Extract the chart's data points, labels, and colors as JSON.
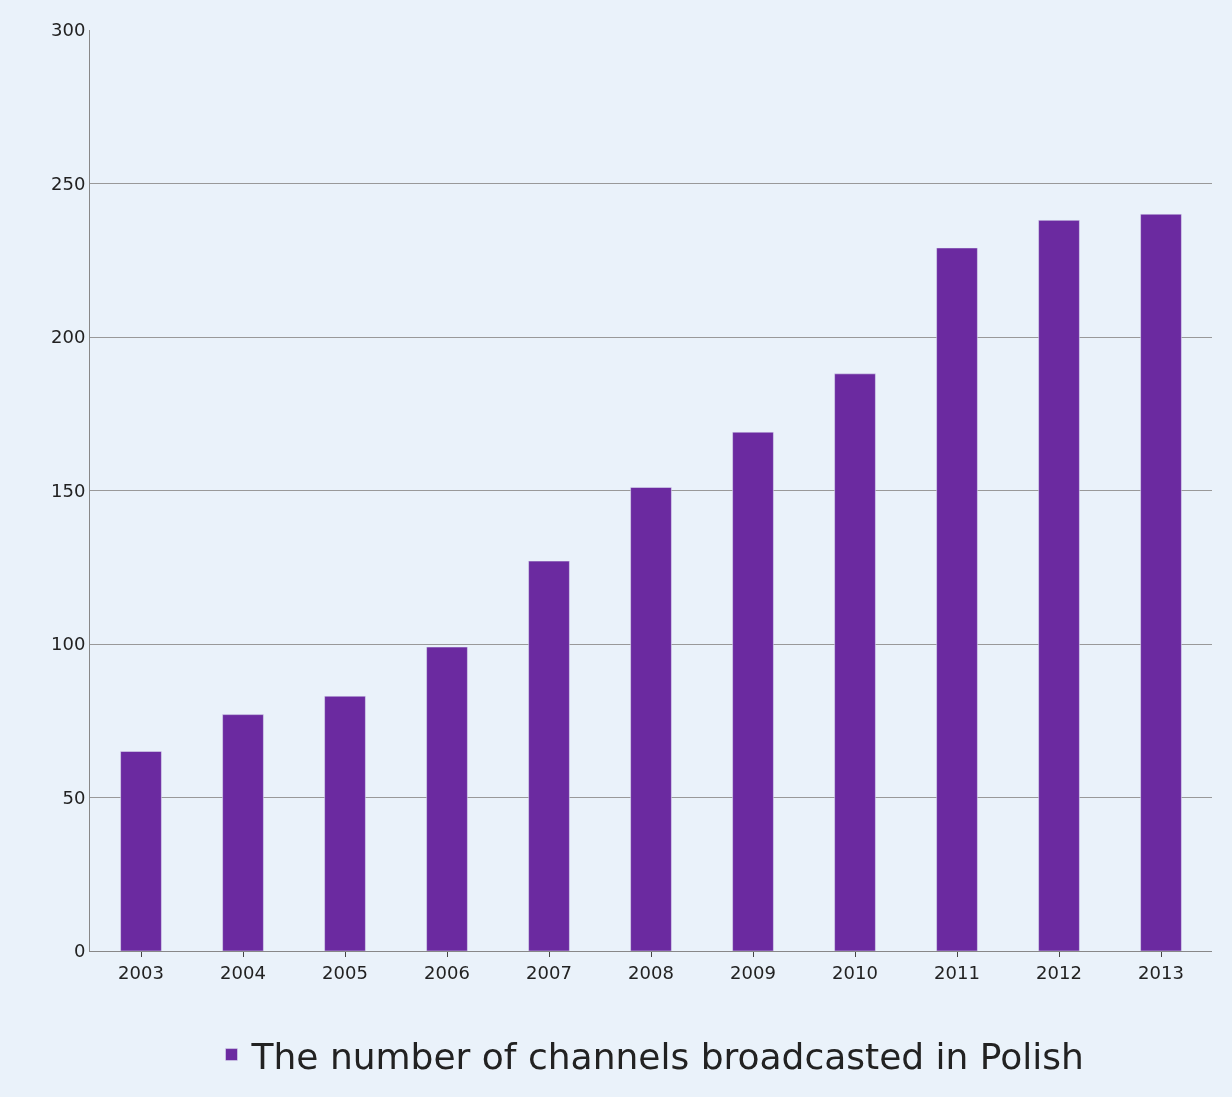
{
  "chart_data": {
    "type": "bar",
    "categories": [
      "2003",
      "2004",
      "2005",
      "2006",
      "2007",
      "2008",
      "2009",
      "2010",
      "2011",
      "2012",
      "2013"
    ],
    "series": [
      {
        "name": "The number of channels broadcasted in Polish",
        "color": "#6b2aa0",
        "values": [
          65,
          77,
          83,
          99,
          127,
          151,
          169,
          188,
          229,
          238,
          240
        ]
      }
    ],
    "ylim": [
      0,
      300
    ],
    "yticks": [
      0,
      50,
      100,
      150,
      200,
      250,
      300
    ],
    "grid": "y",
    "legend": "bottom"
  }
}
